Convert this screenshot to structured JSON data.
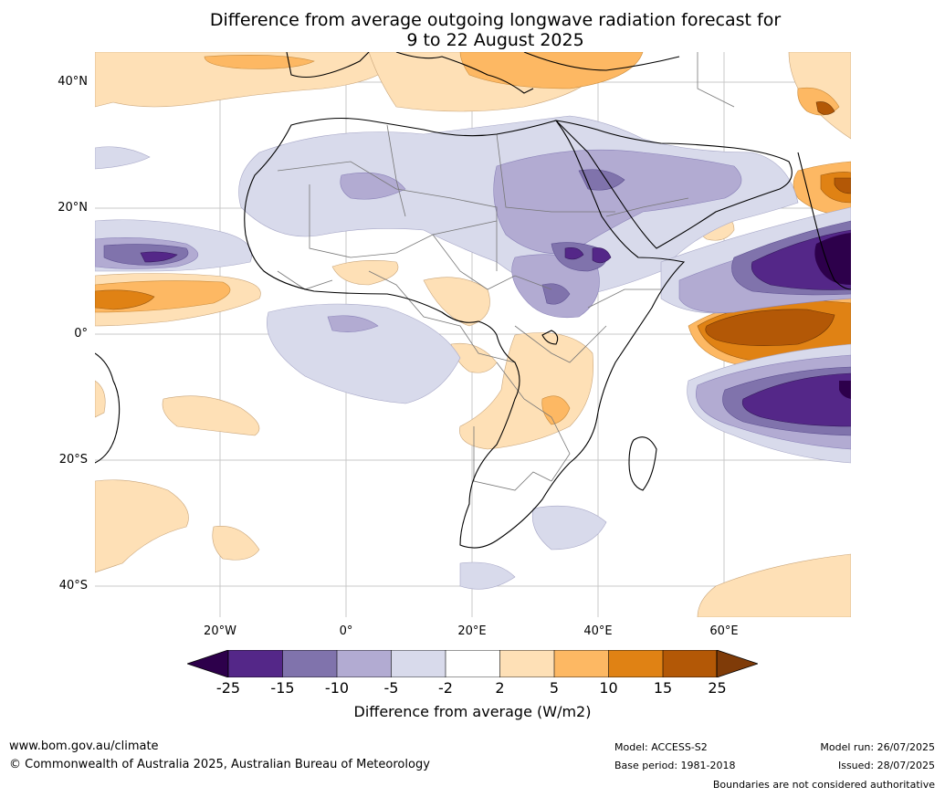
{
  "title": {
    "line1": "Difference from average outgoing longwave radiation forecast for",
    "line2": "9 to 22 August 2025"
  },
  "map": {
    "lat_labels": [
      "40°N",
      "20°N",
      "0°",
      "20°S",
      "40°S"
    ],
    "lon_labels": [
      "20°W",
      "0°",
      "20°E",
      "40°E",
      "60°E"
    ]
  },
  "colorbar": {
    "ticks": [
      "-25",
      "-15",
      "-10",
      "-5",
      "-2",
      "2",
      "5",
      "10",
      "15",
      "25"
    ],
    "label": "Difference from average (W/m2)",
    "colors": {
      "below_-25": "#2d004b",
      "-25_-15": "#542788",
      "-15_-10": "#8073ac",
      "-10_-5": "#b2abd2",
      "-5_-2": "#d8daeb",
      "-2_2": "#ffffff",
      "2_5": "#fee0b6",
      "5_10": "#fdb863",
      "10_15": "#e08214",
      "15_25": "#b35806",
      "above_25": "#7f3b08"
    }
  },
  "footer": {
    "website": "www.bom.gov.au/climate",
    "copyright": "© Commonwealth of Australia 2025, Australian Bureau of Meteorology",
    "model": "Model: ACCESS-S2",
    "base_period": "Base period: 1981-2018",
    "model_run": "Model run: 26/07/2025",
    "issued": "Issued: 28/07/2025",
    "disclaimer": "Boundaries are not considered authoritative"
  }
}
